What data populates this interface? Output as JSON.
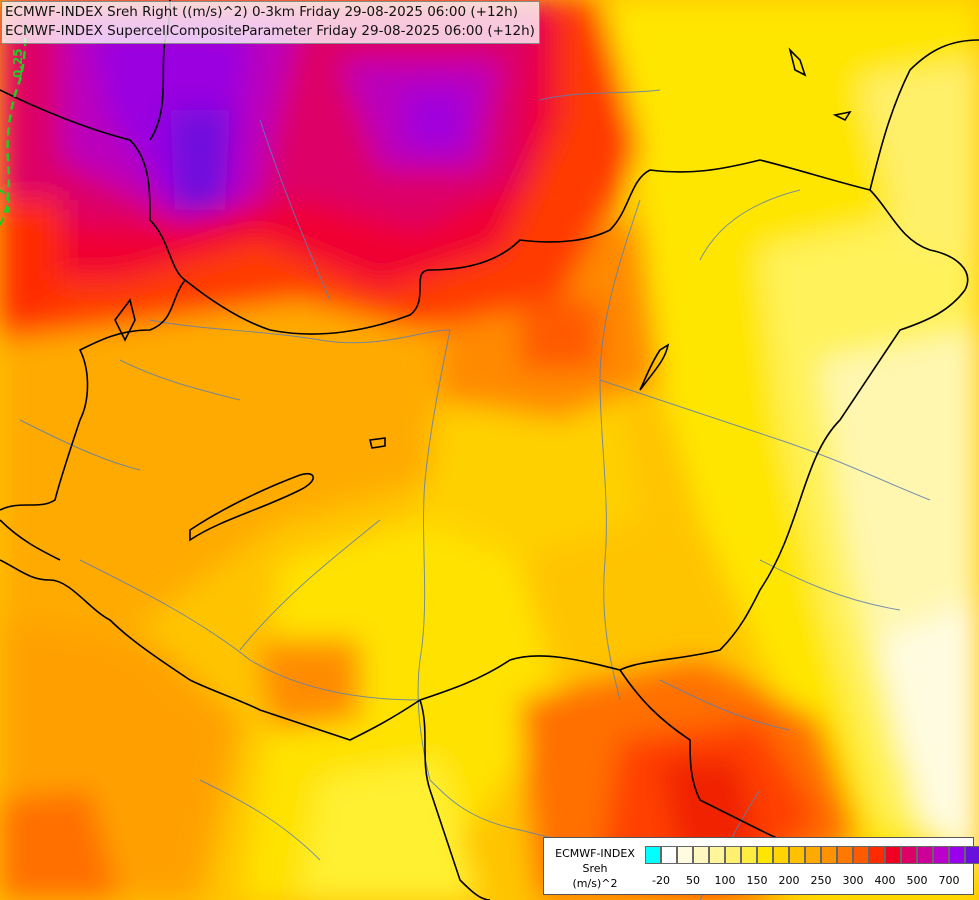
{
  "titles": {
    "line1": "ECMWF-INDEX Sreh Right ((m/s)^2) 0-3km Friday 29-08-2025 06:00 (+12h)",
    "line2": "ECMWF-INDEX SupercellCompositeParameter Friday 29-08-2025 06:00 (+12h)"
  },
  "contour": {
    "label": "0.25",
    "color": "#22cc22"
  },
  "legend": {
    "title_lines": [
      "ECMWF-INDEX",
      "Sreh",
      "(m/s)^2"
    ],
    "colors": [
      "#00ffff",
      "#ffffff",
      "#fffbe0",
      "#fff7c0",
      "#fff59a",
      "#fff070",
      "#ffec40",
      "#ffe600",
      "#ffd400",
      "#ffc000",
      "#ffaa00",
      "#ff9200",
      "#ff7800",
      "#ff5a00",
      "#ff2a00",
      "#f00022",
      "#dd0066",
      "#cc0099",
      "#bb00cc",
      "#9900ee",
      "#6a10dd",
      "#3a10aa",
      "#10107a"
    ],
    "ticks": [
      "-20",
      "50",
      "100",
      "150",
      "200",
      "250",
      "300",
      "400",
      "500",
      "700"
    ]
  }
}
